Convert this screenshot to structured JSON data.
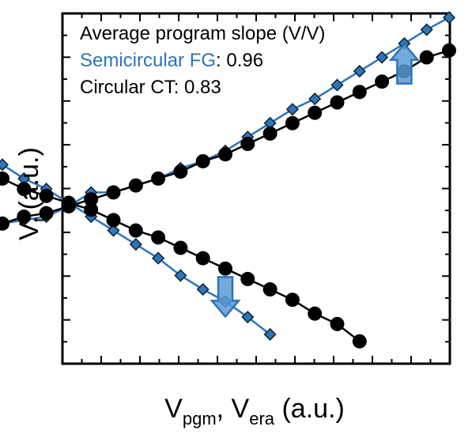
{
  "chart_data": {
    "type": "scatter",
    "xlabel": {
      "main": "V",
      "sub1": "pgm",
      "sep": ", V",
      "sub2": "era",
      "unit": " (a.u.)"
    },
    "ylabel": {
      "main": "V",
      "sub": "t",
      "unit": " (a.u.)"
    },
    "xlim": [
      0,
      10
    ],
    "ylim": [
      0,
      10
    ],
    "grid": false,
    "annotations": {
      "title": "Average program slope (V/V)",
      "fg_name": "Semicircular FG",
      "fg_value": ": 0.96",
      "ct_name": "Circular CT",
      "ct_value": ": 0.83"
    },
    "series": [
      {
        "name": "Semicircular FG",
        "role": "program",
        "marker": "diamond",
        "color": "#2e75b6",
        "x": [
          0.0,
          0.5,
          1.0,
          1.5,
          2.0,
          2.5,
          3.0,
          3.5,
          4.0,
          4.5,
          5.0,
          5.5,
          6.0,
          6.5,
          7.0,
          7.5,
          8.0,
          8.5,
          9.0,
          9.5,
          10.0
        ],
        "y": [
          4.0,
          4.1,
          4.2,
          4.5,
          4.9,
          4.9,
          5.1,
          5.3,
          5.6,
          5.8,
          6.1,
          6.5,
          6.9,
          7.3,
          7.6,
          8.0,
          8.4,
          8.8,
          9.2,
          9.6,
          9.95
        ]
      },
      {
        "name": "Semicircular FG",
        "role": "erase",
        "marker": "diamond",
        "color": "#2e75b6",
        "x": [
          0.0,
          0.5,
          1.0,
          1.5,
          2.0,
          2.5,
          3.0,
          3.5,
          4.0,
          4.5,
          5.0,
          5.5,
          6.0
        ],
        "y": [
          5.7,
          5.3,
          5.0,
          4.6,
          4.2,
          3.8,
          3.4,
          3.0,
          2.5,
          2.1,
          1.75,
          1.3,
          0.8
        ]
      },
      {
        "name": "Circular CT",
        "role": "program",
        "marker": "circle",
        "color": "#000000",
        "x": [
          0.0,
          0.5,
          1.0,
          1.5,
          2.0,
          2.5,
          3.0,
          3.5,
          4.0,
          4.5,
          5.0,
          5.5,
          6.0,
          6.5,
          7.0,
          7.5,
          8.0,
          8.5,
          9.0,
          9.5,
          10.0
        ],
        "y": [
          4.0,
          4.2,
          4.3,
          4.5,
          4.7,
          4.9,
          5.1,
          5.3,
          5.5,
          5.8,
          6.0,
          6.3,
          6.6,
          6.9,
          7.2,
          7.5,
          7.8,
          8.1,
          8.4,
          8.8,
          9.0
        ]
      },
      {
        "name": "Circular CT",
        "role": "erase",
        "marker": "circle",
        "color": "#000000",
        "x": [
          0.0,
          0.5,
          1.0,
          1.5,
          2.0,
          2.5,
          3.0,
          3.5,
          4.0,
          4.5,
          5.0,
          5.5,
          6.0,
          6.5,
          7.0,
          7.5,
          8.0
        ],
        "y": [
          5.3,
          5.0,
          4.8,
          4.6,
          4.4,
          4.1,
          3.8,
          3.6,
          3.3,
          3.0,
          2.7,
          2.4,
          2.1,
          1.8,
          1.4,
          1.1,
          0.6
        ]
      }
    ],
    "arrows": [
      {
        "direction": "up",
        "x": 9.0,
        "y": 8.5,
        "color": "#2e75b6"
      },
      {
        "direction": "down",
        "x": 5.0,
        "y": 2.0,
        "color": "#2e75b6"
      }
    ]
  }
}
